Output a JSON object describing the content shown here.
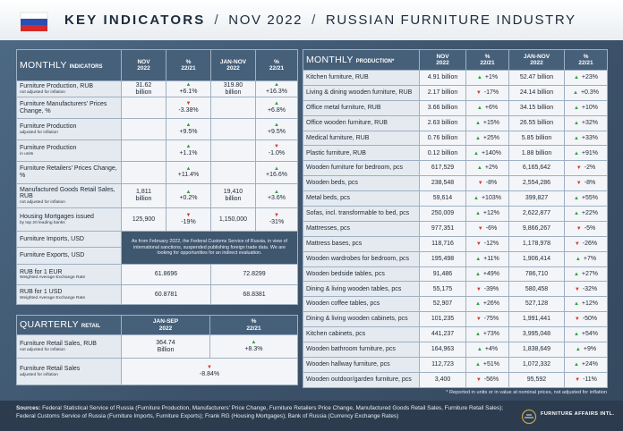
{
  "header": {
    "title": "KEY INDICATORS",
    "separator": "/",
    "period": "NOV 2022",
    "subject": "RUSSIAN FURNITURE INDUSTRY"
  },
  "monthly": {
    "title_main": "MONTHLY",
    "title_sub": "INDICATORS",
    "columns": [
      "NOV\n2022",
      "%\n22/21",
      "JAN-NOV\n2022",
      "%\n22/21"
    ],
    "rows": [
      {
        "label": "Furniture Production, RUB",
        "note": "not adjusted for inflation",
        "values": [
          "31.62\nbillion",
          "+6.1%",
          "319.80\nbillion",
          "+16.3%"
        ]
      },
      {
        "label": "Furniture Manufacturers' Prices Change, %",
        "values": [
          null,
          "-3.38%",
          null,
          "+6.8%"
        ]
      },
      {
        "label": "Furniture Production",
        "note": "adjusted for inflation",
        "values": [
          null,
          "+9.5%",
          null,
          "+9.5%"
        ]
      },
      {
        "label": "Furniture Production",
        "note": "in units",
        "values": [
          null,
          "+1.1%",
          null,
          "-1.0%"
        ]
      },
      {
        "label": "Furniture Retailers' Prices Change, %",
        "values": [
          null,
          "+11.4%",
          null,
          "+16.6%"
        ]
      },
      {
        "label": "Manufactured Goods Retail Sales, RUB",
        "note": "not adjusted for inflation",
        "values": [
          "1,811\nbillion",
          "+0.2%",
          "19,410\nbillion",
          "+3.6%"
        ]
      },
      {
        "label": "Housing Mortgages issued",
        "note": "by top 20 leading banks",
        "values": [
          "125,900",
          "-19%",
          "1,150,000",
          "-31%"
        ]
      },
      {
        "label": "Furniture Imports, USD"
      },
      {
        "label": "Furniture Exports, USD"
      },
      {
        "label": "RUB for 1 EUR",
        "note": "Weighted Average Exchange Rate",
        "values": [
          "61.8696",
          "72.8299"
        ]
      },
      {
        "label": "RUB for 1 USD",
        "note": "Weighted Average Exchange Rate",
        "values": [
          "60.8781",
          "68.8381"
        ]
      }
    ],
    "customs_note": "As from February 2022, the Federal Customs Service of Russia, in view of international sanctions, suspended publishing foreign trade data. We are looking for opportunities for an indirect evaluation."
  },
  "quarterly": {
    "title_main": "QUARTERLY",
    "title_sub": "RETAIL",
    "columns": [
      "JAN-SEP\n2022",
      "%\n22/21"
    ],
    "rows": [
      {
        "label": "Furniture Retail Sales, RUB",
        "note": "not adjusted for inflation",
        "values": [
          "364.74\nBillion",
          "+8.3%"
        ]
      },
      {
        "label": "Furniture Retail Sales",
        "note": "adjusted for inflation",
        "values": [
          "-8.84%"
        ]
      }
    ]
  },
  "production": {
    "title_main": "MONTHLY",
    "title_sub": "PRODUCTION*",
    "columns": [
      "NOV\n2022",
      "%\n22/21",
      "JAN-NOV\n2022",
      "%\n22/21"
    ],
    "rows": [
      {
        "label": "Kitchen furniture, RUB",
        "values": [
          "4.91 billion",
          "+1%",
          "52.47 billion",
          "+23%"
        ]
      },
      {
        "label": "Living & dining wooden furniture, RUB",
        "values": [
          "2.17 billion",
          "-17%",
          "24.14 billion",
          "+0.3%"
        ]
      },
      {
        "label": "Office metal furniture, RUB",
        "values": [
          "3.66 billion",
          "+6%",
          "34.15 billion",
          "+10%"
        ]
      },
      {
        "label": "Office wooden furniture, RUB",
        "values": [
          "2.63 billion",
          "+15%",
          "26.55 billion",
          "+32%"
        ]
      },
      {
        "label": "Medical furniture, RUB",
        "values": [
          "0.76 billion",
          "+25%",
          "5.85 billion",
          "+33%"
        ]
      },
      {
        "label": "Plastic furniture, RUB",
        "values": [
          "0.12 billion",
          "+140%",
          "1.88 billion",
          "+91%"
        ]
      },
      {
        "label": "Wooden furniture for bedroom, pcs",
        "values": [
          "617,529",
          "+2%",
          "6,165,642",
          "-2%"
        ]
      },
      {
        "label": "Wooden beds, pcs",
        "values": [
          "238,548",
          "-8%",
          "2,554,286",
          "-8%"
        ]
      },
      {
        "label": "Metal beds, pcs",
        "values": [
          "59,614",
          "+103%",
          "399,827",
          "+55%"
        ]
      },
      {
        "label": "Sofas, incl. transformable to bed, pcs",
        "values": [
          "250,009",
          "+12%",
          "2,622,877",
          "+22%"
        ]
      },
      {
        "label": "Mattresses, pcs",
        "values": [
          "977,351",
          "-6%",
          "9,866,267",
          "-5%"
        ]
      },
      {
        "label": "Mattress bases, pcs",
        "values": [
          "118,716",
          "-12%",
          "1,178,978",
          "-26%"
        ]
      },
      {
        "label": "Wooden wardrobes for bedroom, pcs",
        "values": [
          "195,498",
          "+11%",
          "1,906,414",
          "+7%"
        ]
      },
      {
        "label": "Wooden bedside tables, pcs",
        "values": [
          "91,486",
          "+49%",
          "786,710",
          "+27%"
        ]
      },
      {
        "label": "Dining & living wooden tables, pcs",
        "values": [
          "55,175",
          "-39%",
          "580,458",
          "-32%"
        ]
      },
      {
        "label": "Wooden coffee tables, pcs",
        "values": [
          "52,907",
          "+26%",
          "527,128",
          "+12%"
        ]
      },
      {
        "label": "Dining & living wooden cabinets, pcs",
        "values": [
          "101,235",
          "-75%",
          "1,991,441",
          "-50%"
        ]
      },
      {
        "label": "Kitchen cabinets, pcs",
        "values": [
          "441,237",
          "+73%",
          "3,995,048",
          "+54%"
        ]
      },
      {
        "label": "Wooden bathroom furniture, pcs",
        "values": [
          "164,963",
          "+4%",
          "1,838,649",
          "+9%"
        ]
      },
      {
        "label": "Wooden hallway furniture, pcs",
        "values": [
          "112,723",
          "+51%",
          "1,072,332",
          "+24%"
        ]
      },
      {
        "label": "Wooden outdoor/garden furniture, pcs",
        "values": [
          "3,400",
          "-56%",
          "95,592",
          "-11%"
        ]
      }
    ],
    "footnote": "* Reported in units or in value at nominal prices, not adjusted for inflation"
  },
  "footer": {
    "sources_label": "Sources:",
    "sources": "Federal Statistical Service of Russia (Furniture Production, Manufacturers' Price Change, Furniture Retailers Price Change, Manufactured Goods Retail Sales, Furniture Retail Sales); Federal Customs Service of Russia (Furniture Imports, Furniture Exports); Frank RG (Housing Mortgages); Bank of Russia (Currency Exchange Rates)",
    "logo": "FURNITURE AFFAIRS INTL."
  }
}
